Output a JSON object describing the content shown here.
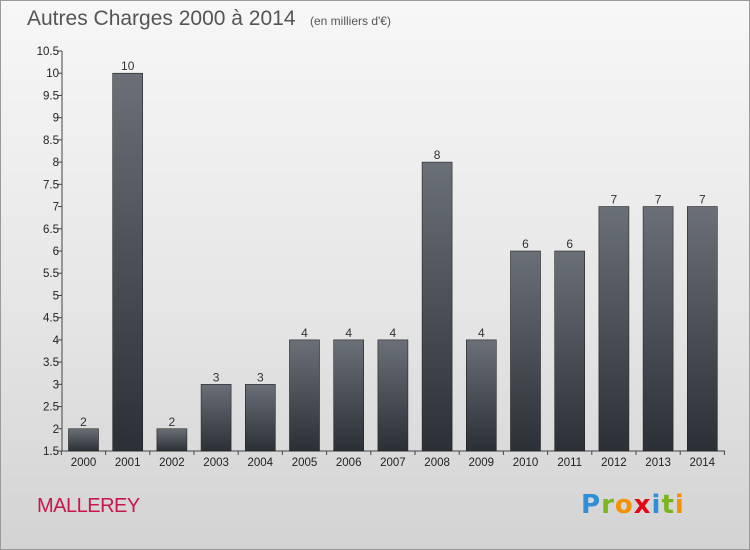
{
  "header": {
    "title": "Autres Charges 2000 à 2014",
    "subtitle": "(en milliers d'€)"
  },
  "footer": {
    "commune": "MALLEREY",
    "logo_text": "Proxiti",
    "logo_letters": [
      {
        "ch": "P",
        "color": "#2f8fd6"
      },
      {
        "ch": "r",
        "color": "#7ab51d"
      },
      {
        "ch": "o",
        "color": "#f39200"
      },
      {
        "ch": "x",
        "color": "#e30613"
      },
      {
        "ch": "i",
        "color": "#2f8fd6"
      },
      {
        "ch": "t",
        "color": "#7ab51d"
      },
      {
        "ch": "i",
        "color": "#f39200"
      }
    ]
  },
  "colors": {
    "bar_top": "#6b7078",
    "bar_bottom": "#2b2f36",
    "accent": "#c8174e"
  },
  "chart_data": {
    "type": "bar",
    "title": "Autres Charges 2000 à 2014",
    "subtitle": "(en milliers d'€)",
    "categories": [
      "2000",
      "2001",
      "2002",
      "2003",
      "2004",
      "2005",
      "2006",
      "2007",
      "2008",
      "2009",
      "2010",
      "2011",
      "2012",
      "2013",
      "2014"
    ],
    "values": [
      2,
      10,
      2,
      3,
      3,
      4,
      4,
      4,
      8,
      4,
      6,
      6,
      7,
      7,
      7
    ],
    "value_labels": [
      "2",
      "10",
      "2",
      "3",
      "3",
      "4",
      "4",
      "4",
      "8",
      "4",
      "6",
      "6",
      "7",
      "7",
      "7"
    ],
    "ylim": [
      1.5,
      10.5
    ],
    "yticks": [
      "1.5",
      "2",
      "2.5",
      "3",
      "3.5",
      "4",
      "4.5",
      "5",
      "5.5",
      "6",
      "6.5",
      "7",
      "7.5",
      "8",
      "8.5",
      "9",
      "9.5",
      "10",
      "10.5"
    ],
    "xlabel": "",
    "ylabel": "",
    "grid": false,
    "legend": "none"
  }
}
